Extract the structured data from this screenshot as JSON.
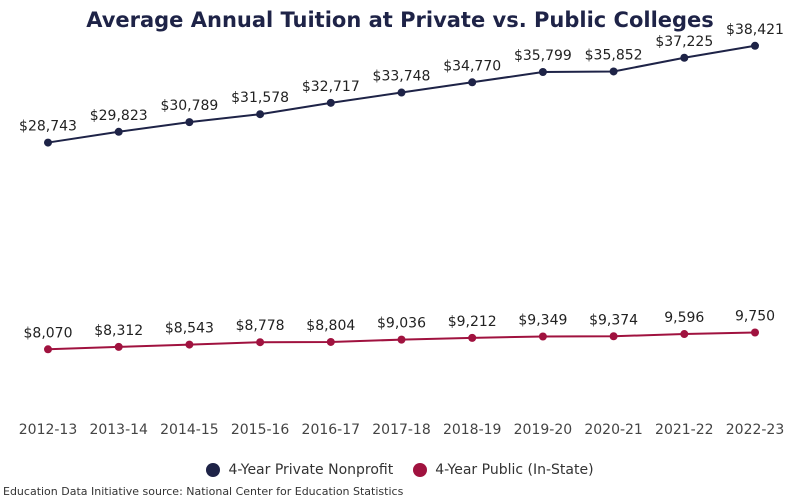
{
  "title": "Average Annual Tuition at Private vs. Public Colleges",
  "source": "Education Data Initiative source: National Center for Education Statistics",
  "chart_data": {
    "type": "line",
    "title": "Average Annual Tuition at Private vs. Public Colleges",
    "xlabel": "",
    "ylabel": "",
    "ylim": [
      0,
      40000
    ],
    "grid": false,
    "legend_position": "bottom",
    "categories": [
      "2012-13",
      "2013-14",
      "2014-15",
      "2015-16",
      "2016-17",
      "2017-18",
      "2018-19",
      "2019-20",
      "2020-21",
      "2021-22",
      "2022-23"
    ],
    "series": [
      {
        "name": "4-Year Private Nonprofit",
        "color": "#1e2347",
        "values": [
          28743,
          29823,
          30789,
          31578,
          32717,
          33748,
          34770,
          35799,
          35852,
          37225,
          38421
        ],
        "labels": [
          "$28,743",
          "$29,823",
          "$30,789",
          "$31,578",
          "$32,717",
          "$33,748",
          "$34,770",
          "$35,799",
          "$35,852",
          "$37,225",
          "$38,421"
        ]
      },
      {
        "name": "4-Year Public (In-State)",
        "color": "#a0123f",
        "values": [
          8070,
          8312,
          8543,
          8778,
          8804,
          9036,
          9212,
          9349,
          9374,
          9596,
          9750
        ],
        "labels": [
          "$8,070",
          "$8,312",
          "$8,543",
          "$8,778",
          "$8,804",
          "$9,036",
          "$9,212",
          "$9,349",
          "$9,374",
          "9,596",
          "9,750"
        ]
      }
    ]
  }
}
